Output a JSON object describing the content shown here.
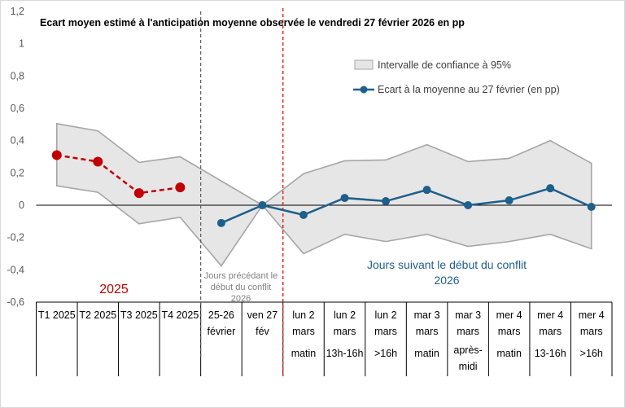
{
  "chart_data": {
    "type": "line",
    "title": "Ecart moyen estimé à l'anticipation  moyenne observée le vendredi 27 février 2026 en pp",
    "ylim": [
      -0.6,
      1.2
    ],
    "yticks": [
      "-0,6",
      "-0,4",
      "-0,2",
      "0",
      "0,2",
      "0,4",
      "0,6",
      "0,8",
      "1",
      "1,2"
    ],
    "categories": [
      [
        "T1 2025"
      ],
      [
        "T2 2025"
      ],
      [
        "T3 2025"
      ],
      [
        "T4 2025"
      ],
      [
        "25-26",
        "février"
      ],
      [
        "ven 27",
        "fév"
      ],
      [
        "lun 2",
        "mars",
        "matin"
      ],
      [
        "lun 2",
        "mars",
        "13h-16h"
      ],
      [
        "lun 2",
        "mars",
        ">16h"
      ],
      [
        "mar 3",
        "mars",
        "matin"
      ],
      [
        "mar 3",
        "mars",
        "après-",
        "midi"
      ],
      [
        "mer 4",
        "mars",
        "matin"
      ],
      [
        "mer 4",
        "mars",
        "13-16h"
      ],
      [
        "mer 4",
        "mars",
        ">16h"
      ]
    ],
    "series": [
      {
        "name": "Ecart à la moyenne au 27 février (en pp)",
        "color": "#1f5f8b",
        "values": [
          null,
          null,
          null,
          null,
          -0.11,
          0.0,
          -0.06,
          0.045,
          0.025,
          0.095,
          0.0,
          0.03,
          0.105,
          -0.01
        ]
      },
      {
        "name": "",
        "color": "#c00000",
        "values": [
          0.31,
          0.27,
          0.075,
          0.11,
          null,
          null,
          null,
          null,
          null,
          null,
          null,
          null,
          null,
          null
        ]
      }
    ],
    "confidence_band": {
      "name": "Intervalle de confiance à 95%",
      "color": "#e6e6e6",
      "upper": [
        0.505,
        0.46,
        0.265,
        0.3,
        0.15,
        0.0,
        0.195,
        0.275,
        0.28,
        0.375,
        0.27,
        0.29,
        0.4,
        0.26
      ],
      "lower": [
        0.12,
        0.08,
        -0.115,
        -0.075,
        -0.375,
        0.0,
        -0.3,
        -0.18,
        -0.225,
        -0.18,
        -0.255,
        -0.225,
        -0.18,
        -0.27
      ]
    },
    "annotations": {
      "year_2025": "2025",
      "before_conflict": [
        "Jours précédant le",
        "début du conflit",
        "2026"
      ],
      "after_conflict": [
        "Jours suivant le début du conflit",
        "2026"
      ]
    },
    "legend_position": "top-right",
    "grid": false
  }
}
